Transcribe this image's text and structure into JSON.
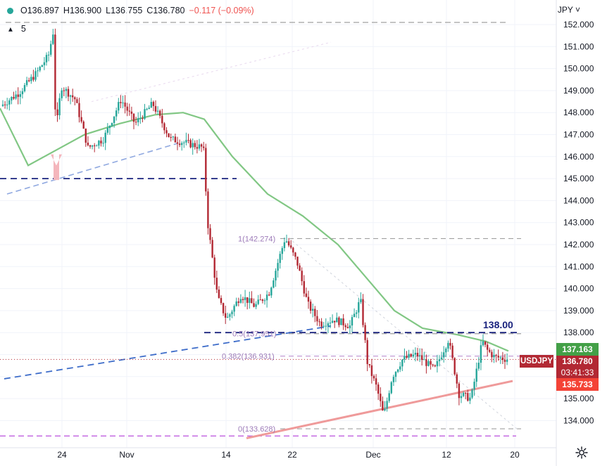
{
  "header": {
    "open_label": "O",
    "open": "136.897",
    "high_label": "H",
    "high": "136.900",
    "low_label": "L",
    "low": "136.755",
    "close_label": "C",
    "close": "136.780",
    "change": "−0.117 (−0.09%)",
    "indicator_count": "5",
    "currency": "JPY"
  },
  "price_tags": {
    "ma_value": "137.163",
    "last_price": "136.780",
    "countdown": "03:41:33",
    "support": "135.733",
    "symbol": "USDJPY",
    "resistance_label": "138.00"
  },
  "fib_labels": {
    "top": "1(142.274)",
    "half": "0.5(137.951)",
    "f382": "0.382(136.931)",
    "zero": "0(133.628)"
  },
  "colors": {
    "up": "#26a69a",
    "down": "#ef5350",
    "ma": "#81c784",
    "support_tag": "#f44336",
    "last_tag": "#b22833",
    "ma_tag": "#43a047",
    "level": "#1a237e",
    "fib": "#9c7ab8",
    "trend": "#3d6cc9",
    "pink_trend": "#ef9a9a"
  },
  "chart_data": {
    "type": "candlestick",
    "title": "USDJPY",
    "ylim": [
      133.2,
      152.5
    ],
    "yticks": [
      "152.000",
      "151.000",
      "150.000",
      "149.000",
      "148.000",
      "147.000",
      "146.000",
      "145.000",
      "144.000",
      "143.000",
      "142.000",
      "141.000",
      "140.000",
      "139.000",
      "138.000",
      "137.000",
      "136.000",
      "135.000",
      "134.000"
    ],
    "xticks": [
      "24",
      "Nov",
      "14",
      "22",
      "Dec",
      "12",
      "20"
    ],
    "approx_path": [
      {
        "d": "Oct 18",
        "close": 148.3
      },
      {
        "d": "Oct 20",
        "close": 149.6
      },
      {
        "d": "Oct 21",
        "close": 151.9
      },
      {
        "d": "Oct 24",
        "close": 149.0
      },
      {
        "d": "Oct 27",
        "close": 146.4
      },
      {
        "d": "Nov 1",
        "close": 148.6
      },
      {
        "d": "Nov 4",
        "close": 147.3
      },
      {
        "d": "Nov 8",
        "close": 146.6
      },
      {
        "d": "Nov 10",
        "close": 142.0
      },
      {
        "d": "Nov 14",
        "close": 139.0
      },
      {
        "d": "Nov 18",
        "close": 139.5
      },
      {
        "d": "Nov 21",
        "close": 142.3
      },
      {
        "d": "Nov 25",
        "close": 138.3
      },
      {
        "d": "Nov 30",
        "close": 138.1
      },
      {
        "d": "Dec 2",
        "close": 134.8
      },
      {
        "d": "Dec 6",
        "close": 137.0
      },
      {
        "d": "Dec 12",
        "close": 137.7
      },
      {
        "d": "Dec 14",
        "close": 135.0
      },
      {
        "d": "Dec 15",
        "close": 138.1
      },
      {
        "d": "Dec 19",
        "close": 136.8
      }
    ],
    "moving_average_last": 137.163,
    "horizontal_levels": [
      152.1,
      145.0,
      138.0,
      133.3
    ],
    "fib_levels": [
      142.274,
      137.951,
      136.931,
      133.628
    ]
  }
}
